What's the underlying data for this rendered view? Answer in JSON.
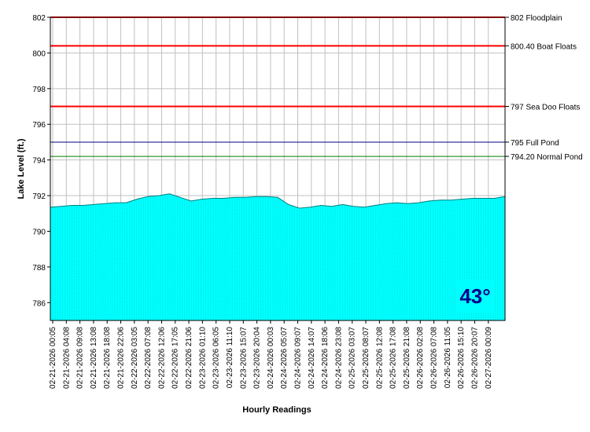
{
  "chart_data": {
    "type": "area",
    "xlabel": "Hourly Readings",
    "ylabel": "Lake Level (ft.)",
    "ylim": [
      785,
      802
    ],
    "yticks": [
      786,
      788,
      790,
      792,
      794,
      796,
      798,
      800,
      802
    ],
    "xtick_labels": [
      "02-21-2026 00:05",
      "02-21-2026 04:08",
      "02-21-2026 09:08",
      "02-21-2026 13:08",
      "02-21-2026 18:08",
      "02-21-2026 22:06",
      "02-22-2026 03:05",
      "02-22-2026 07:08",
      "02-22-2026 12:06",
      "02-22-2026 17:05",
      "02-22-2026 21:06",
      "02-23-2026 01:10",
      "02-23-2026 06:05",
      "02-23-2026 11:10",
      "02-23-2026 15:07",
      "02-23-2026 20:04",
      "02-24-2026 00:03",
      "02-24-2026 05:07",
      "02-24-2026 09:07",
      "02-24-2026 14:07",
      "02-24-2026 18:06",
      "02-24-2026 23:08",
      "02-25-2026 03:07",
      "02-25-2026 08:07",
      "02-25-2026 12:08",
      "02-25-2026 17:08",
      "02-25-2026 21:08",
      "02-26-2026 02:08",
      "02-26-2026 07:08",
      "02-26-2026 11:05",
      "02-26-2026 15:10",
      "02-26-2026 20:07",
      "02-27-2026 00:09"
    ],
    "grid": true,
    "fill_color": "#00ffff",
    "series": [
      {
        "values": [
          791.35,
          791.4,
          791.45,
          791.45,
          791.5,
          791.55,
          791.6,
          791.6,
          791.8,
          791.95,
          792.0,
          792.1,
          791.9,
          791.7,
          791.8,
          791.85,
          791.85,
          791.9,
          791.9,
          791.95,
          791.95,
          791.9,
          791.5,
          791.3,
          791.35,
          791.45,
          791.4,
          791.5,
          791.4,
          791.35,
          791.45,
          791.55,
          791.6,
          791.55,
          791.6,
          791.7,
          791.75,
          791.75,
          791.8,
          791.85,
          791.85,
          791.85,
          791.95
        ]
      }
    ],
    "reference_lines": [
      {
        "value": 802,
        "label": "802 Floodplain",
        "color": "#ff0000"
      },
      {
        "value": 800.4,
        "label": "800.40 Boat Floats",
        "color": "#ff0000"
      },
      {
        "value": 797,
        "label": "797 Sea Doo Floats",
        "color": "#ff0000"
      },
      {
        "value": 795,
        "label": "795 Full Pond",
        "color": "#000080"
      },
      {
        "value": 794.2,
        "label": "794.20 Normal Pond",
        "color": "#008000"
      }
    ]
  },
  "temperature": "43°"
}
